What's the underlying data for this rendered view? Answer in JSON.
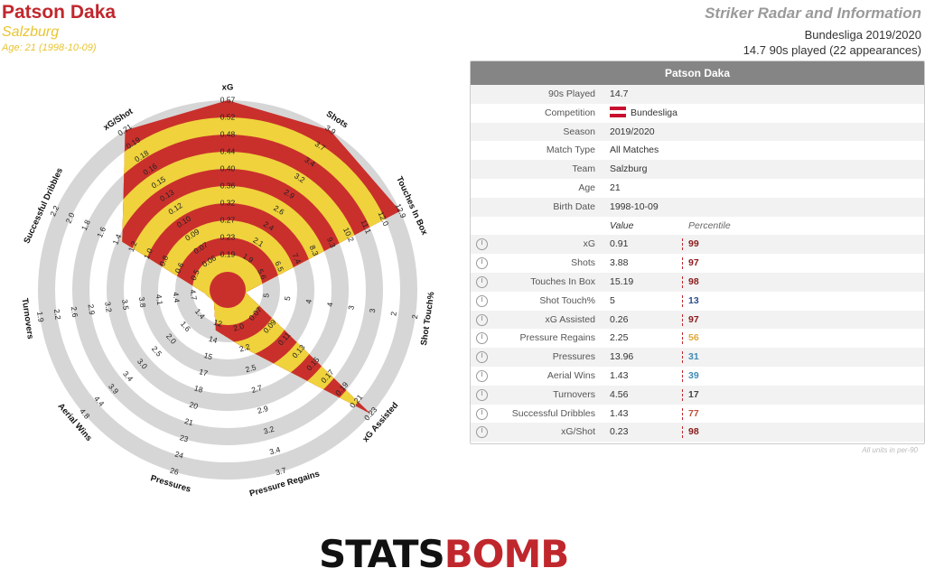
{
  "player": {
    "name": "Patson Daka",
    "club": "Salzburg",
    "age_line": "Age: 21 (1998-10-09)"
  },
  "header": {
    "radar_title": "Striker Radar and Information",
    "league_season": "Bundesliga 2019/2020",
    "played": "14.7 90s played (22 appearances)"
  },
  "table": {
    "title": "Patson Daka",
    "info": [
      {
        "label": "90s Played",
        "value": "14.7"
      },
      {
        "label": "Competition",
        "value": "Bundesliga"
      },
      {
        "label": "Season",
        "value": "2019/2020"
      },
      {
        "label": "Match Type",
        "value": "All Matches"
      },
      {
        "label": "Team",
        "value": "Salzburg"
      },
      {
        "label": "Age",
        "value": "21"
      },
      {
        "label": "Birth Date",
        "value": "1998-10-09"
      }
    ],
    "value_header": "Value",
    "percentile_header": "Percentile",
    "metrics": [
      {
        "label": "xG",
        "value": "0.91",
        "pct": "99",
        "color": "#8b1a1a"
      },
      {
        "label": "Shots",
        "value": "3.88",
        "pct": "97",
        "color": "#8b1a1a"
      },
      {
        "label": "Touches In Box",
        "value": "15.19",
        "pct": "98",
        "color": "#8b1a1a"
      },
      {
        "label": "Shot Touch%",
        "value": "5",
        "pct": "13",
        "color": "#2c4f8c"
      },
      {
        "label": "xG Assisted",
        "value": "0.26",
        "pct": "97",
        "color": "#8b1a1a"
      },
      {
        "label": "Pressure Regains",
        "value": "2.25",
        "pct": "56",
        "color": "#e0a83a"
      },
      {
        "label": "Pressures",
        "value": "13.96",
        "pct": "31",
        "color": "#3e8ab5"
      },
      {
        "label": "Aerial Wins",
        "value": "1.43",
        "pct": "39",
        "color": "#3e8ab5"
      },
      {
        "label": "Turnovers",
        "value": "4.56",
        "pct": "17",
        "color": "#444444"
      },
      {
        "label": "Successful Dribbles",
        "value": "1.43",
        "pct": "77",
        "color": "#c0503a"
      },
      {
        "label": "xG/Shot",
        "value": "0.23",
        "pct": "98",
        "color": "#8b1a1a"
      }
    ],
    "units_note": "All units in per-90"
  },
  "logo": {
    "part1": "STATS",
    "part2": "BOMB"
  },
  "chart_data": {
    "type": "radar",
    "title": "",
    "ring_count": 10,
    "colors": {
      "red": "#c9302c",
      "yellow": "#efd23c",
      "ring_grey": "#d6d6d6"
    },
    "axes": [
      {
        "label": "xG",
        "ticks": [
          "0.19",
          "0.23",
          "0.27",
          "0.32",
          "0.36",
          "0.40",
          "0.44",
          "0.48",
          "0.52",
          "0.57"
        ],
        "value_fraction": 1.0
      },
      {
        "label": "Shots",
        "ticks": [
          "1.9",
          "2.1",
          "2.4",
          "2.6",
          "2.9",
          "3.2",
          "3.4",
          "3.7",
          "3.9"
        ],
        "value_fraction": 1.0
      },
      {
        "label": "Touches In Box",
        "ticks": [
          "5.6",
          "6.5",
          "7.4",
          "8.3",
          "9.3",
          "10.2",
          "11.1",
          "12.0",
          "12.9"
        ],
        "value_fraction": 1.0
      },
      {
        "label": "Shot Touch%",
        "ticks": [
          "5",
          "5",
          "4",
          "4",
          "3",
          "3",
          "2",
          "2"
        ],
        "value_fraction": 0.0
      },
      {
        "label": "xG Assisted",
        "ticks": [
          "0.07",
          "0.09",
          "0.11",
          "0.13",
          "0.15",
          "0.17",
          "0.19",
          "0.21",
          "0.23"
        ],
        "value_fraction": 1.0
      },
      {
        "label": "Pressure Regains",
        "ticks": [
          "2.0",
          "2.2",
          "2.5",
          "2.7",
          "2.9",
          "3.2",
          "3.4",
          "3.7"
        ],
        "value_fraction": 0.25
      },
      {
        "label": "Pressures",
        "ticks": [
          "12",
          "14",
          "15",
          "17",
          "18",
          "20",
          "21",
          "23",
          "24",
          "26"
        ],
        "value_fraction": 0.14
      },
      {
        "label": "Aerial Wins",
        "ticks": [
          "1.4",
          "1.6",
          "2.0",
          "2.5",
          "3.0",
          "3.4",
          "3.9",
          "4.4",
          "4.8"
        ],
        "value_fraction": 0.0
      },
      {
        "label": "Turnovers",
        "ticks": [
          "4.7",
          "4.4",
          "4.1",
          "3.8",
          "3.5",
          "3.2",
          "2.9",
          "2.6",
          "2.2",
          "1.9"
        ],
        "value_fraction": 0.03
      },
      {
        "label": "Successful Dribbles",
        "ticks": [
          "0.5",
          "0.6",
          "0.8",
          "1.0",
          "1.2",
          "1.4",
          "1.6",
          "1.8",
          "2.0",
          "2.2"
        ],
        "value_fraction": 0.57
      },
      {
        "label": "xG/Shot",
        "ticks": [
          "0.06",
          "0.07",
          "0.09",
          "0.10",
          "0.12",
          "0.13",
          "0.15",
          "0.16",
          "0.18",
          "0.19",
          "0.21"
        ],
        "value_fraction": 1.0
      }
    ]
  }
}
